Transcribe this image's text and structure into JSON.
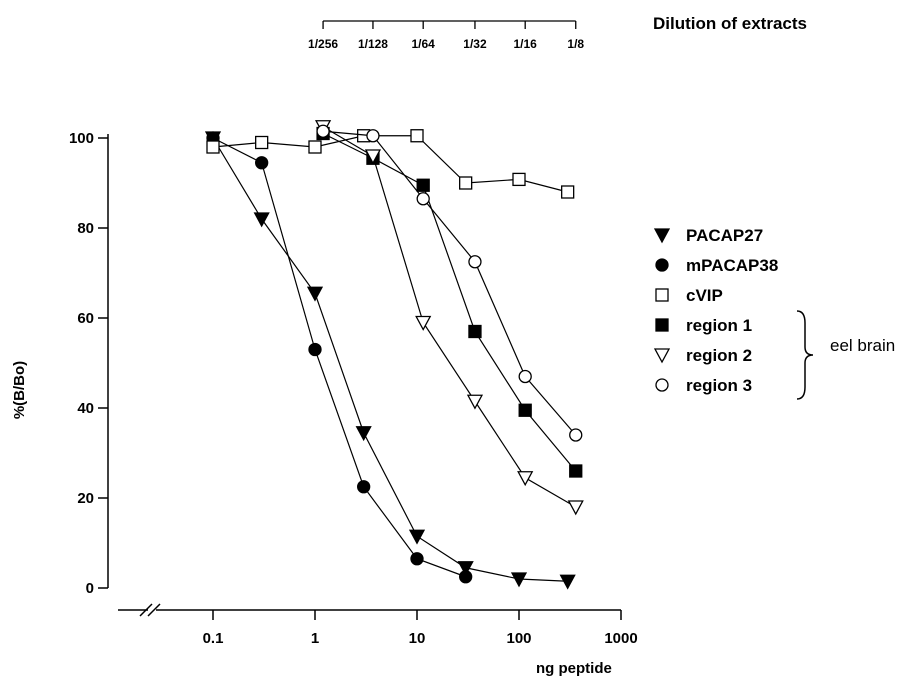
{
  "chart_data": {
    "type": "line",
    "x_scale": "log",
    "xlabel": "ng peptide",
    "ylabel": "%(B/Bo)",
    "xlim": [
      0.1,
      1000
    ],
    "ylim": [
      0,
      100
    ],
    "x_ticks": [
      {
        "value": 0.1,
        "label": "0.1"
      },
      {
        "value": 1,
        "label": "1"
      },
      {
        "value": 10,
        "label": "10"
      },
      {
        "value": 100,
        "label": "100"
      },
      {
        "value": 1000,
        "label": "1000"
      }
    ],
    "y_ticks": [
      {
        "value": 0,
        "label": "0"
      },
      {
        "value": 20,
        "label": "20"
      },
      {
        "value": 40,
        "label": "40"
      },
      {
        "value": 60,
        "label": "60"
      },
      {
        "value": 80,
        "label": "80"
      },
      {
        "value": 100,
        "label": "100"
      }
    ],
    "secondary_axis": {
      "title": "Dilution of extracts",
      "ticks": [
        {
          "value": 1.2,
          "label": "1/256"
        },
        {
          "value": 3.7,
          "label": "1/128"
        },
        {
          "value": 11.5,
          "label": "1/64"
        },
        {
          "value": 37,
          "label": "1/32"
        },
        {
          "value": 115,
          "label": "1/16"
        },
        {
          "value": 360,
          "label": "1/8"
        }
      ]
    },
    "series": [
      {
        "name": "PACAP27",
        "marker": "triangle-down-filled",
        "x": [
          0.1,
          0.3,
          1.0,
          3.0,
          10,
          30,
          100,
          300
        ],
        "y": [
          100,
          82,
          65.5,
          34.5,
          11.5,
          4.5,
          2,
          1.5
        ]
      },
      {
        "name": "mPACAP38",
        "marker": "circle-filled",
        "x": [
          0.1,
          0.3,
          1.0,
          3.0,
          10,
          30
        ],
        "y": [
          100,
          94.5,
          53,
          22.5,
          6.5,
          2.5
        ]
      },
      {
        "name": "cVIP",
        "marker": "square-open",
        "x": [
          0.1,
          0.3,
          1.0,
          3.0,
          10,
          30,
          100,
          300
        ],
        "y": [
          98,
          99,
          98,
          100.5,
          100.5,
          90,
          90.8,
          88
        ]
      },
      {
        "name": "region 1",
        "marker": "square-filled",
        "x": [
          1.2,
          3.7,
          11.5,
          37,
          115,
          360
        ],
        "y": [
          101,
          95.5,
          89.5,
          57,
          39.5,
          26
        ]
      },
      {
        "name": "region 2",
        "marker": "triangle-down-open",
        "x": [
          1.2,
          3.7,
          11.5,
          37,
          115,
          360
        ],
        "y": [
          102.5,
          96,
          59,
          41.5,
          24.5,
          18
        ]
      },
      {
        "name": "region 3",
        "marker": "circle-open",
        "x": [
          1.2,
          3.7,
          11.5,
          37,
          115,
          360
        ],
        "y": [
          101.5,
          100.5,
          86.5,
          72.5,
          47,
          34
        ]
      }
    ],
    "legend_placement": "right",
    "legend_group_note": "eel brain",
    "grid": false
  }
}
